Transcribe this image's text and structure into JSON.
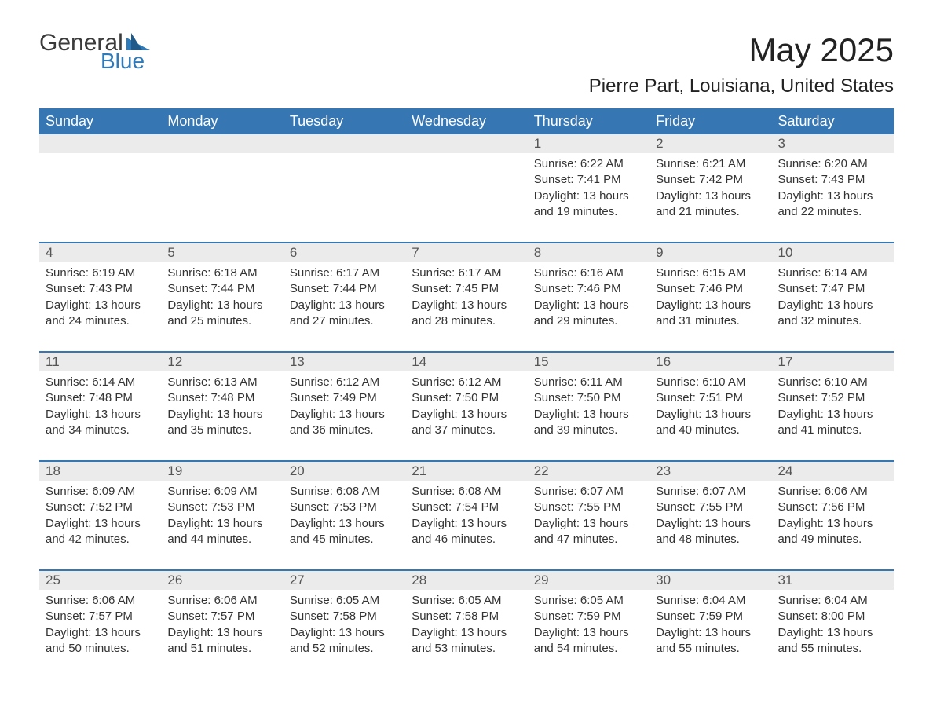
{
  "brand": {
    "part1": "General",
    "part2": "Blue",
    "accent": "#2f7ab8"
  },
  "title": "May 2025",
  "location": "Pierre Part, Louisiana, United States",
  "colors": {
    "header_bg": "#3677b3",
    "header_text": "#ffffff",
    "daynum_bg": "#ebebeb",
    "daynum_text": "#555555",
    "body_text": "#333333",
    "row_divider": "#3677b3",
    "page_bg": "#ffffff"
  },
  "weekdays": [
    "Sunday",
    "Monday",
    "Tuesday",
    "Wednesday",
    "Thursday",
    "Friday",
    "Saturday"
  ],
  "weeks": [
    [
      null,
      null,
      null,
      null,
      {
        "n": "1",
        "sunrise": "6:22 AM",
        "sunset": "7:41 PM",
        "daylight": "13 hours and 19 minutes."
      },
      {
        "n": "2",
        "sunrise": "6:21 AM",
        "sunset": "7:42 PM",
        "daylight": "13 hours and 21 minutes."
      },
      {
        "n": "3",
        "sunrise": "6:20 AM",
        "sunset": "7:43 PM",
        "daylight": "13 hours and 22 minutes."
      }
    ],
    [
      {
        "n": "4",
        "sunrise": "6:19 AM",
        "sunset": "7:43 PM",
        "daylight": "13 hours and 24 minutes."
      },
      {
        "n": "5",
        "sunrise": "6:18 AM",
        "sunset": "7:44 PM",
        "daylight": "13 hours and 25 minutes."
      },
      {
        "n": "6",
        "sunrise": "6:17 AM",
        "sunset": "7:44 PM",
        "daylight": "13 hours and 27 minutes."
      },
      {
        "n": "7",
        "sunrise": "6:17 AM",
        "sunset": "7:45 PM",
        "daylight": "13 hours and 28 minutes."
      },
      {
        "n": "8",
        "sunrise": "6:16 AM",
        "sunset": "7:46 PM",
        "daylight": "13 hours and 29 minutes."
      },
      {
        "n": "9",
        "sunrise": "6:15 AM",
        "sunset": "7:46 PM",
        "daylight": "13 hours and 31 minutes."
      },
      {
        "n": "10",
        "sunrise": "6:14 AM",
        "sunset": "7:47 PM",
        "daylight": "13 hours and 32 minutes."
      }
    ],
    [
      {
        "n": "11",
        "sunrise": "6:14 AM",
        "sunset": "7:48 PM",
        "daylight": "13 hours and 34 minutes."
      },
      {
        "n": "12",
        "sunrise": "6:13 AM",
        "sunset": "7:48 PM",
        "daylight": "13 hours and 35 minutes."
      },
      {
        "n": "13",
        "sunrise": "6:12 AM",
        "sunset": "7:49 PM",
        "daylight": "13 hours and 36 minutes."
      },
      {
        "n": "14",
        "sunrise": "6:12 AM",
        "sunset": "7:50 PM",
        "daylight": "13 hours and 37 minutes."
      },
      {
        "n": "15",
        "sunrise": "6:11 AM",
        "sunset": "7:50 PM",
        "daylight": "13 hours and 39 minutes."
      },
      {
        "n": "16",
        "sunrise": "6:10 AM",
        "sunset": "7:51 PM",
        "daylight": "13 hours and 40 minutes."
      },
      {
        "n": "17",
        "sunrise": "6:10 AM",
        "sunset": "7:52 PM",
        "daylight": "13 hours and 41 minutes."
      }
    ],
    [
      {
        "n": "18",
        "sunrise": "6:09 AM",
        "sunset": "7:52 PM",
        "daylight": "13 hours and 42 minutes."
      },
      {
        "n": "19",
        "sunrise": "6:09 AM",
        "sunset": "7:53 PM",
        "daylight": "13 hours and 44 minutes."
      },
      {
        "n": "20",
        "sunrise": "6:08 AM",
        "sunset": "7:53 PM",
        "daylight": "13 hours and 45 minutes."
      },
      {
        "n": "21",
        "sunrise": "6:08 AM",
        "sunset": "7:54 PM",
        "daylight": "13 hours and 46 minutes."
      },
      {
        "n": "22",
        "sunrise": "6:07 AM",
        "sunset": "7:55 PM",
        "daylight": "13 hours and 47 minutes."
      },
      {
        "n": "23",
        "sunrise": "6:07 AM",
        "sunset": "7:55 PM",
        "daylight": "13 hours and 48 minutes."
      },
      {
        "n": "24",
        "sunrise": "6:06 AM",
        "sunset": "7:56 PM",
        "daylight": "13 hours and 49 minutes."
      }
    ],
    [
      {
        "n": "25",
        "sunrise": "6:06 AM",
        "sunset": "7:57 PM",
        "daylight": "13 hours and 50 minutes."
      },
      {
        "n": "26",
        "sunrise": "6:06 AM",
        "sunset": "7:57 PM",
        "daylight": "13 hours and 51 minutes."
      },
      {
        "n": "27",
        "sunrise": "6:05 AM",
        "sunset": "7:58 PM",
        "daylight": "13 hours and 52 minutes."
      },
      {
        "n": "28",
        "sunrise": "6:05 AM",
        "sunset": "7:58 PM",
        "daylight": "13 hours and 53 minutes."
      },
      {
        "n": "29",
        "sunrise": "6:05 AM",
        "sunset": "7:59 PM",
        "daylight": "13 hours and 54 minutes."
      },
      {
        "n": "30",
        "sunrise": "6:04 AM",
        "sunset": "7:59 PM",
        "daylight": "13 hours and 55 minutes."
      },
      {
        "n": "31",
        "sunrise": "6:04 AM",
        "sunset": "8:00 PM",
        "daylight": "13 hours and 55 minutes."
      }
    ]
  ],
  "labels": {
    "sunrise": "Sunrise:",
    "sunset": "Sunset:",
    "daylight": "Daylight:"
  }
}
